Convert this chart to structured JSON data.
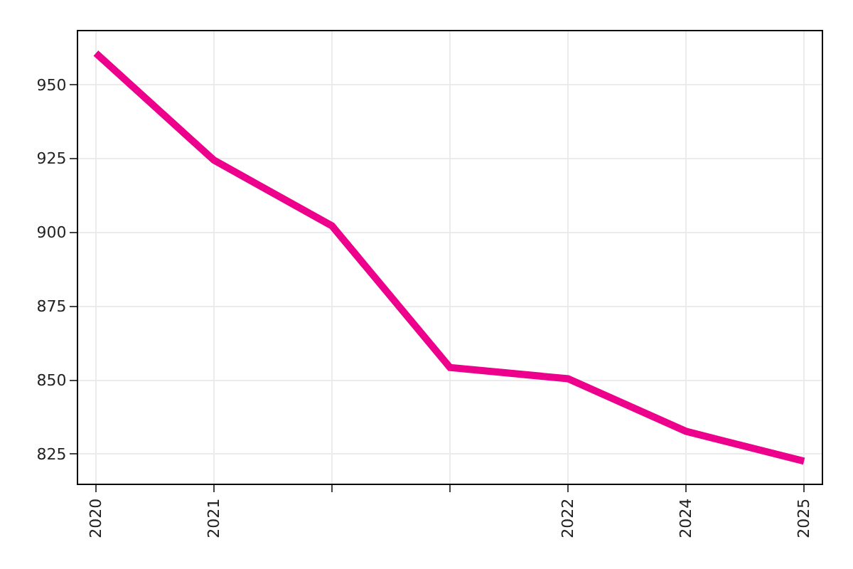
{
  "chart_data": {
    "type": "line",
    "categories": [
      "2020",
      "2021",
      null,
      null,
      "2022",
      "2024",
      "2025"
    ],
    "series": [
      {
        "color": "#ec008c",
        "values": [
          960.6,
          924.4,
          902.2,
          854.3,
          850.5,
          832.7,
          822.6
        ]
      }
    ],
    "ylim": [
      815,
      968
    ],
    "yticks": [
      825,
      850,
      875,
      900,
      925,
      950
    ],
    "grid": true,
    "legend": false,
    "marker": "none",
    "line_style": "solid"
  }
}
